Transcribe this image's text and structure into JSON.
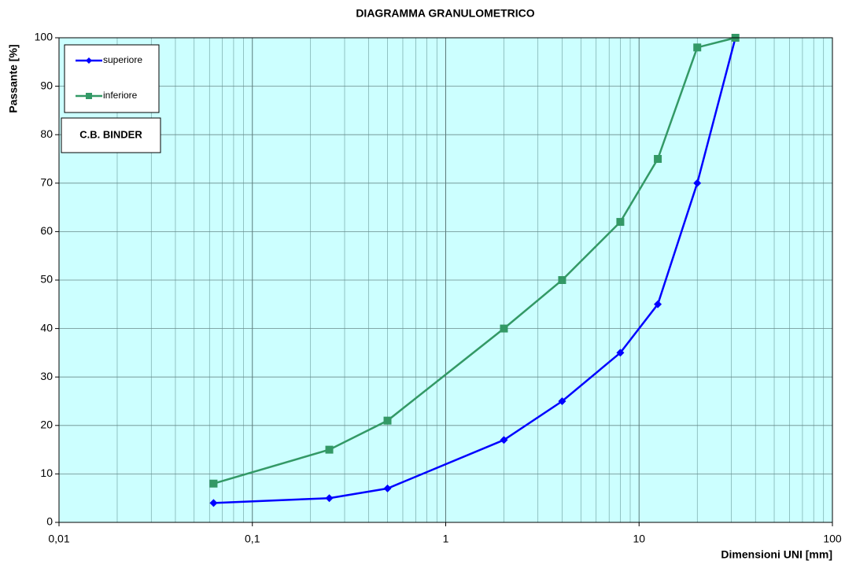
{
  "chart_data": {
    "type": "line",
    "title": "DIAGRAMMA GRANULOMETRICO",
    "x_label": "Dimensioni UNI [mm]",
    "y_label": "Passante [%]",
    "annotation": "C.B. BINDER",
    "x": [
      0.063,
      0.25,
      0.5,
      2,
      4,
      8,
      12.5,
      20,
      31.5
    ],
    "series": [
      {
        "name": "superiore",
        "color": "#0000ff",
        "marker": "diamond",
        "values": [
          4,
          5,
          7,
          17,
          25,
          35,
          45,
          70,
          100
        ]
      },
      {
        "name": "inferiore",
        "color": "#339966",
        "marker": "square",
        "values": [
          8,
          15,
          21,
          40,
          50,
          62,
          75,
          98,
          100
        ]
      }
    ],
    "xscale": "log",
    "xlim": [
      0.01,
      100
    ],
    "xticks": [
      {
        "value": 0.01,
        "label": "0,01"
      },
      {
        "value": 0.1,
        "label": "0,1"
      },
      1,
      10,
      100
    ],
    "ylim": [
      0,
      100
    ],
    "yticks": [
      0,
      10,
      20,
      30,
      40,
      50,
      60,
      70,
      80,
      90,
      100
    ],
    "grid": true,
    "minor_grid": true,
    "legend": "upper left"
  }
}
